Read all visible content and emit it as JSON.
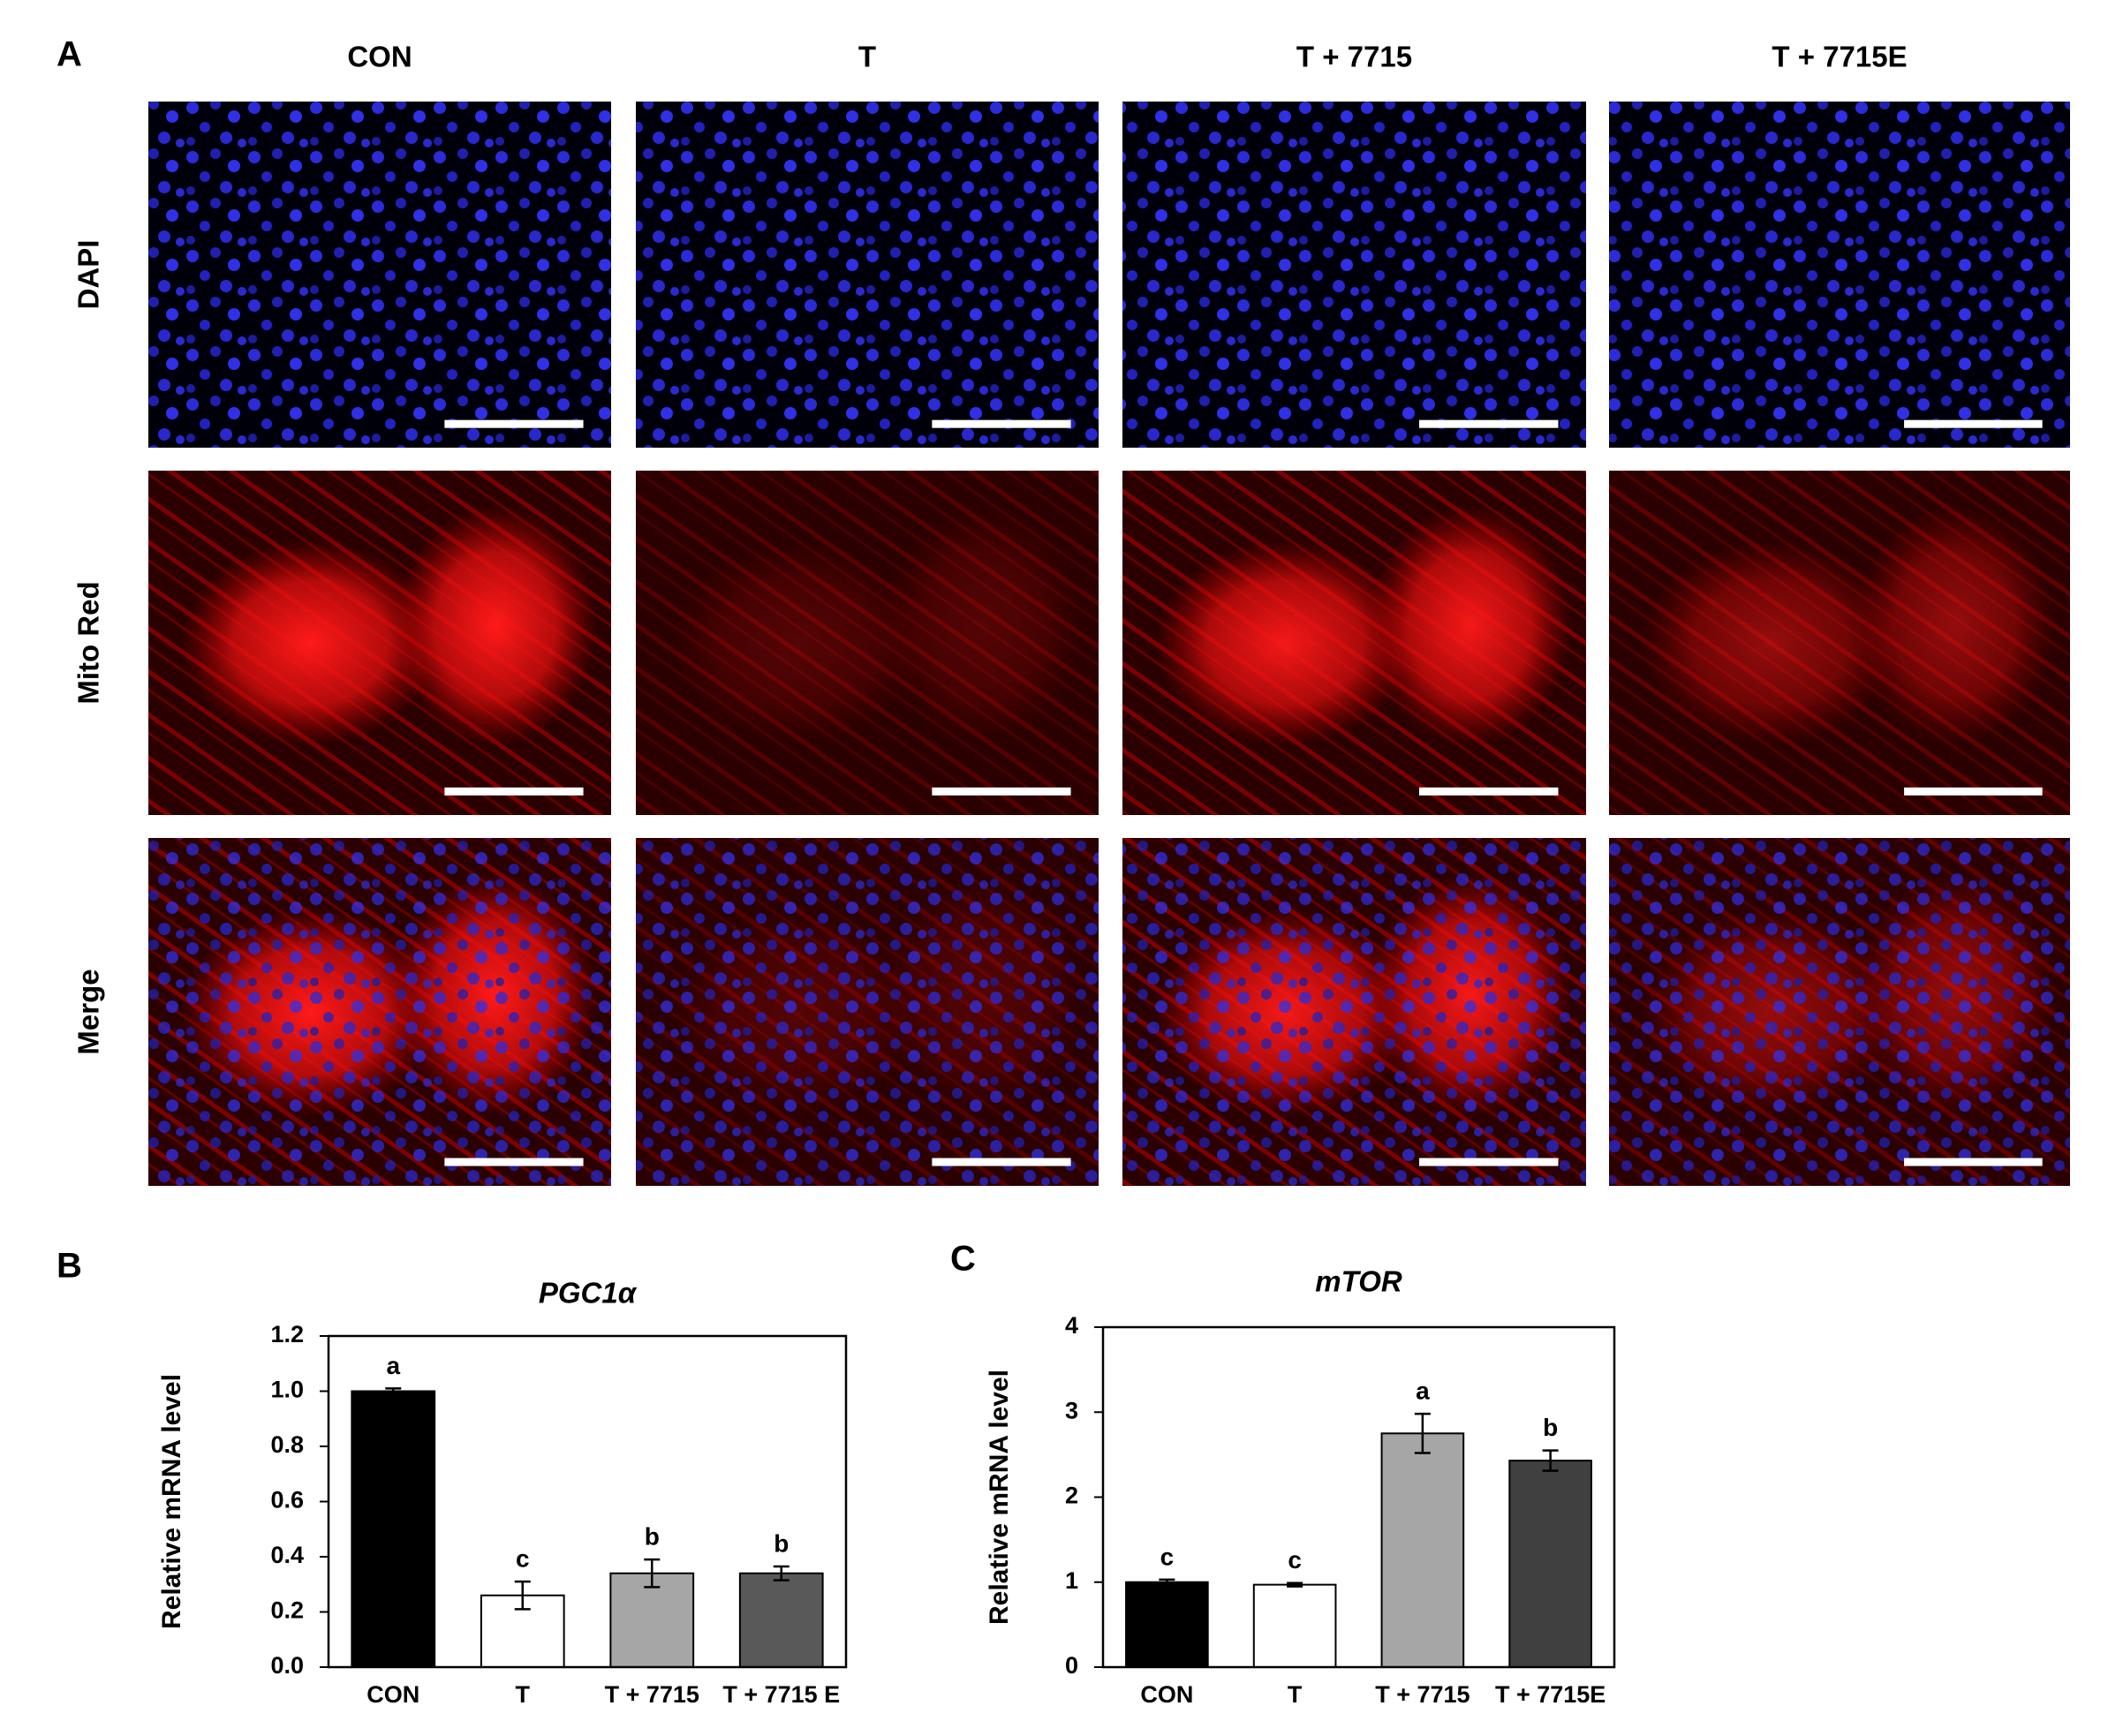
{
  "panel_a": {
    "label": "A",
    "columns": [
      "CON",
      "T",
      "T + 7715",
      "T + 7715E"
    ],
    "rows": [
      "DAPI",
      "Mito Red",
      "Merge"
    ]
  },
  "chart_data": [
    {
      "type": "bar",
      "panel_label": "B",
      "title": "PGC1α",
      "y_label": "Relative mRNA level",
      "categories": [
        "CON",
        "T",
        "T + 7715",
        "T + 7715 E"
      ],
      "values": [
        1.0,
        0.26,
        0.34,
        0.34
      ],
      "errors": [
        0.01,
        0.05,
        0.05,
        0.025
      ],
      "letters": [
        "a",
        "c",
        "b",
        "b"
      ],
      "colors": [
        "#000000",
        "#ffffff",
        "#a6a6a6",
        "#595959"
      ],
      "ylim": [
        0,
        1.2
      ],
      "yticks": [
        {
          "value": 0,
          "label": "0.0"
        },
        {
          "value": 0.2,
          "label": "0.2"
        },
        {
          "value": 0.4,
          "label": "0.4"
        },
        {
          "value": 0.6,
          "label": "0.6"
        },
        {
          "value": 0.8,
          "label": "0.8"
        },
        {
          "value": 1.0,
          "label": "1.0"
        },
        {
          "value": 1.2,
          "label": "1.2"
        }
      ]
    },
    {
      "type": "bar",
      "panel_label": "C",
      "title": "mTOR",
      "y_label": "Relative mRNA level",
      "categories": [
        "CON",
        "T",
        "T + 7715",
        "T + 7715E"
      ],
      "values": [
        1.0,
        0.97,
        2.75,
        2.43
      ],
      "errors": [
        0.03,
        0.02,
        0.23,
        0.12
      ],
      "letters": [
        "c",
        "c",
        "a",
        "b"
      ],
      "colors": [
        "#000000",
        "#ffffff",
        "#a6a6a6",
        "#404040"
      ],
      "ylim": [
        0,
        4
      ],
      "yticks": [
        0,
        1,
        2,
        3,
        4
      ]
    }
  ]
}
